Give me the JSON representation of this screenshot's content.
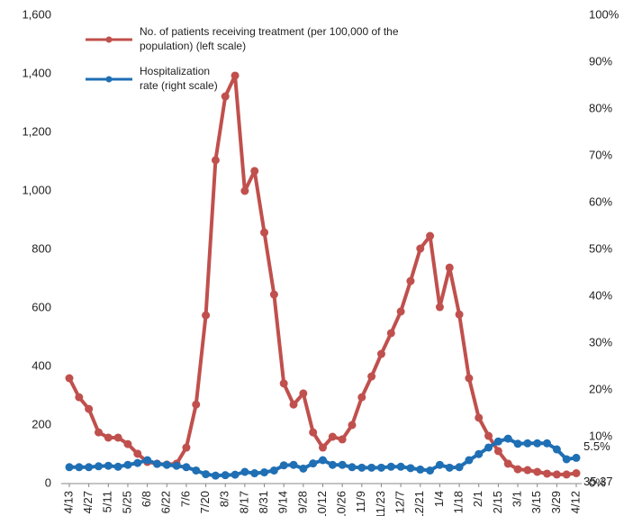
{
  "chart_data": {
    "type": "line",
    "categories": [
      "4/13",
      "4/20",
      "4/27",
      "5/4",
      "5/11",
      "5/18",
      "5/25",
      "6/1",
      "6/8",
      "6/15",
      "6/22",
      "6/29",
      "7/6",
      "7/13",
      "7/20",
      "7/27",
      "8/3",
      "8/10",
      "8/17",
      "8/24",
      "8/31",
      "9/7",
      "9/14",
      "9/21",
      "9/28",
      "10/5",
      "10/12",
      "10/19",
      "10/26",
      "11/2",
      "11/9",
      "11/16",
      "11/23",
      "11/30",
      "12/7",
      "12/14",
      "12/21",
      "12/28",
      "1/4",
      "1/11",
      "1/18",
      "1/25",
      "2/1",
      "2/8",
      "2/15",
      "2/22",
      "3/1",
      "3/8",
      "3/15",
      "3/22",
      "3/29",
      "4/5",
      "4/12"
    ],
    "series": [
      {
        "name": "No. of patients receiving treatment (per 100,000 of the population) (left scale)",
        "color": "#c0504d",
        "axis": "y",
        "values": [
          360,
          295,
          255,
          175,
          157,
          157,
          135,
          102,
          74,
          68,
          65,
          68,
          123,
          270,
          575,
          1105,
          1323,
          1394,
          1000,
          1068,
          858,
          646,
          342,
          270,
          308,
          175,
          123,
          160,
          151,
          200,
          295,
          366,
          443,
          514,
          588,
          692,
          803,
          846,
          603,
          738,
          578,
          360,
          225,
          163,
          111,
          68,
          49,
          46,
          40,
          34,
          31,
          31,
          35.37
        ],
        "value_labels": {
          "52": "35.37"
        }
      },
      {
        "name": "Hospitalization rate (right scale)",
        "color": "#1f6fb4",
        "axis": "y2",
        "values": [
          3.5,
          3.5,
          3.5,
          3.7,
          3.8,
          3.6,
          4.0,
          4.4,
          5.0,
          4.2,
          4.0,
          3.8,
          3.5,
          2.8,
          2.0,
          1.7,
          1.8,
          1.9,
          2.5,
          2.2,
          2.4,
          2.8,
          3.9,
          4.0,
          3.2,
          4.3,
          5.0,
          4.0,
          4.0,
          3.5,
          3.4,
          3.4,
          3.4,
          3.6,
          3.6,
          3.3,
          3.0,
          2.8,
          4.0,
          3.4,
          3.5,
          5.0,
          6.3,
          7.7,
          9.0,
          9.6,
          8.5,
          8.6,
          8.6,
          8.6,
          7.3,
          5.2,
          5.5
        ],
        "value_labels": {
          "52": "5.5%"
        }
      }
    ],
    "xtick_every": 2,
    "ylim": [
      0,
      1600
    ],
    "yticks": [
      0,
      {
        "value": 200,
        "label": "200"
      },
      {
        "value": 400,
        "label": "400"
      },
      {
        "value": 600,
        "label": "600"
      },
      {
        "value": 800,
        "label": "800"
      },
      {
        "value": 1000,
        "label": "1,000"
      },
      {
        "value": 1200,
        "label": "1,200"
      },
      {
        "value": 1400,
        "label": "1,400"
      },
      {
        "value": 1600,
        "label": "1,600"
      }
    ],
    "y2lim": [
      0,
      100
    ],
    "y2ticks": [
      {
        "value": 0,
        "label": "0%"
      },
      {
        "value": 10,
        "label": "10%"
      },
      {
        "value": 20,
        "label": "20%"
      },
      {
        "value": 30,
        "label": "30%"
      },
      {
        "value": 40,
        "label": "40%"
      },
      {
        "value": 50,
        "label": "50%"
      },
      {
        "value": 60,
        "label": "60%"
      },
      {
        "value": 70,
        "label": "70%"
      },
      {
        "value": 80,
        "label": "80%"
      },
      {
        "value": 90,
        "label": "90%"
      },
      {
        "value": 100,
        "label": "100%"
      }
    ]
  }
}
